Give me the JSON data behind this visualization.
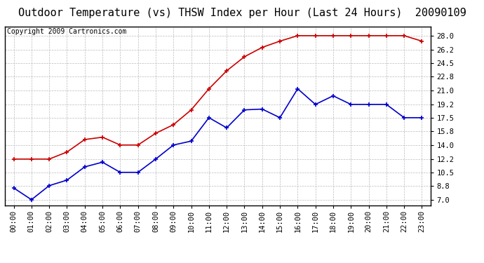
{
  "title": "Outdoor Temperature (vs) THSW Index per Hour (Last 24 Hours)  20090109",
  "copyright": "Copyright 2009 Cartronics.com",
  "hours": [
    "00:00",
    "01:00",
    "02:00",
    "03:00",
    "04:00",
    "05:00",
    "06:00",
    "07:00",
    "08:00",
    "09:00",
    "10:00",
    "11:00",
    "12:00",
    "13:00",
    "14:00",
    "15:00",
    "16:00",
    "17:00",
    "18:00",
    "19:00",
    "20:00",
    "21:00",
    "22:00",
    "23:00"
  ],
  "temp_red": [
    12.2,
    12.2,
    12.2,
    13.1,
    14.7,
    15.0,
    14.0,
    14.0,
    15.5,
    16.6,
    18.5,
    21.2,
    23.5,
    25.3,
    26.5,
    27.3,
    28.0,
    28.0,
    28.0,
    28.0,
    28.0,
    28.0,
    28.0,
    27.3
  ],
  "thsw_blue": [
    8.5,
    7.0,
    8.8,
    9.5,
    11.2,
    11.8,
    10.5,
    10.5,
    12.2,
    14.0,
    14.5,
    17.5,
    16.2,
    18.5,
    18.6,
    17.5,
    21.2,
    19.2,
    20.3,
    19.2,
    19.2,
    19.2,
    17.5,
    17.5
  ],
  "red_color": "#cc0000",
  "blue_color": "#0000cc",
  "bg_color": "#ffffff",
  "grid_color": "#bbbbbb",
  "yticks": [
    7.0,
    8.8,
    10.5,
    12.2,
    14.0,
    15.8,
    17.5,
    19.2,
    21.0,
    22.8,
    24.5,
    26.2,
    28.0
  ],
  "ylim": [
    6.3,
    29.2
  ],
  "title_fontsize": 11,
  "copyright_fontsize": 7,
  "tick_fontsize": 7.5
}
